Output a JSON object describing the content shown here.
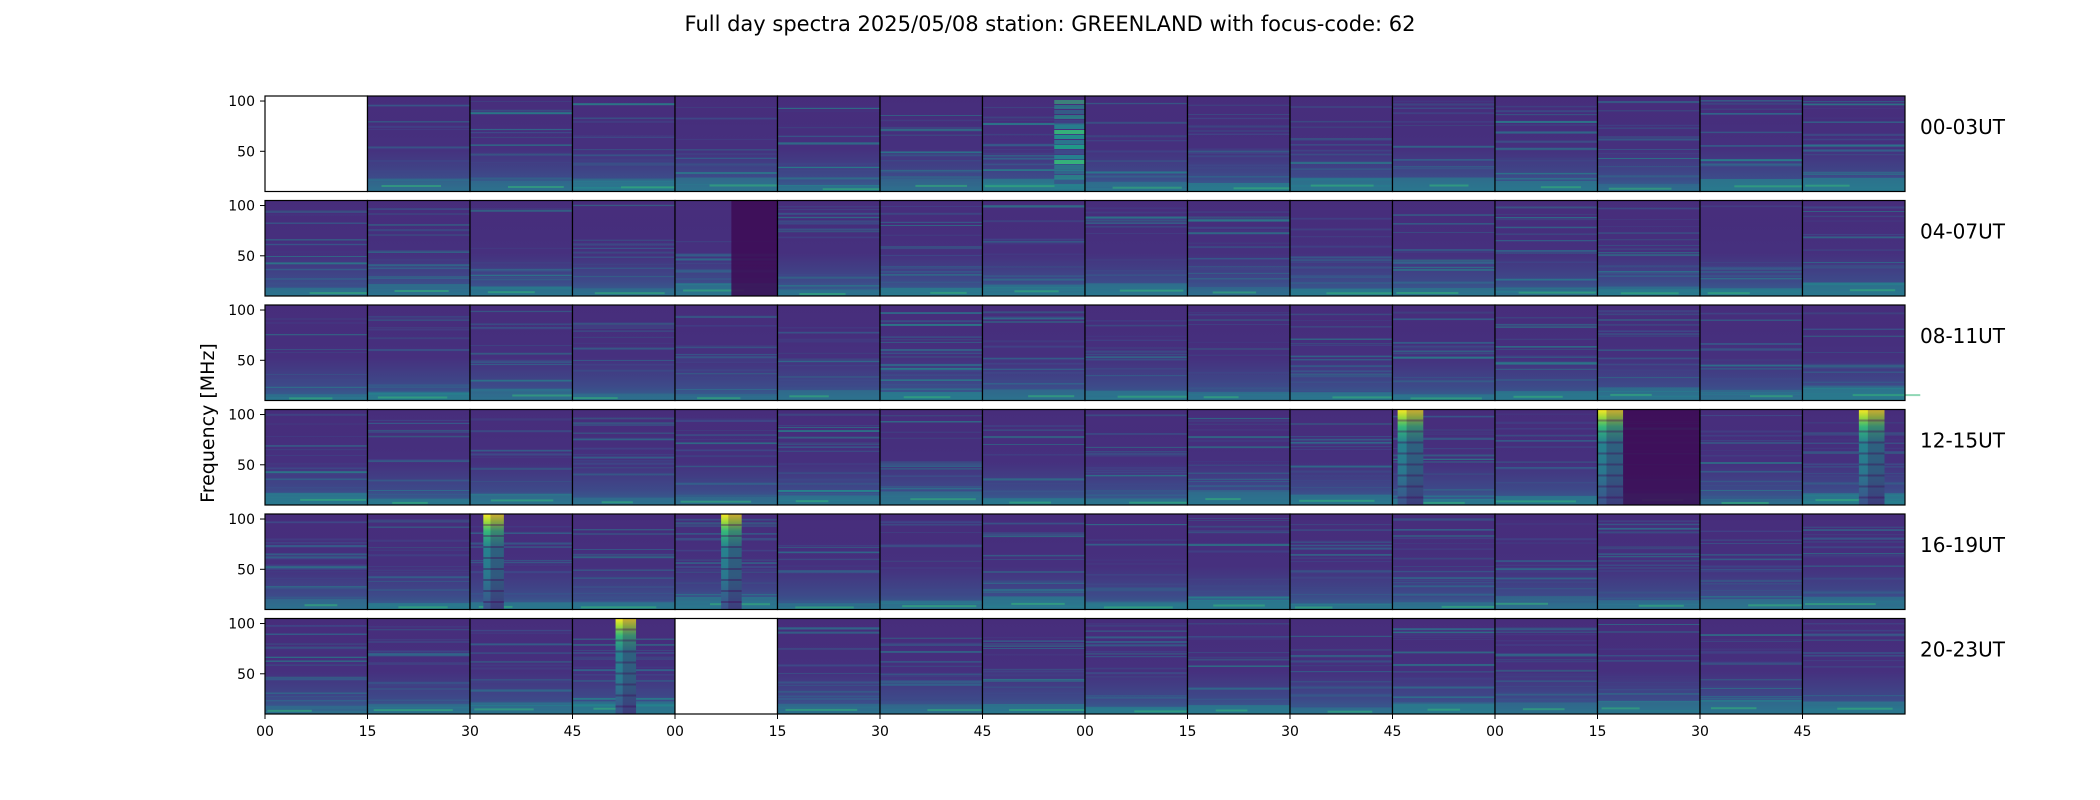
{
  "title": "Full day spectra 2025/05/08 station: GREENLAND with focus-code: 62",
  "chart_data": {
    "type": "heatmap",
    "title": "Full day spectra 2025/05/08 station: GREENLAND with focus-code: 62",
    "ylabel": "Frequency [MHz]",
    "xlabel": "",
    "colormap": "viridis",
    "ylim": [
      10,
      105
    ],
    "yticks": [
      50,
      100
    ],
    "x_ticks": [
      "00",
      "15",
      "30",
      "45",
      "00",
      "15",
      "30",
      "45",
      "00",
      "15",
      "30",
      "45",
      "00",
      "15",
      "30",
      "45"
    ],
    "rows": [
      {
        "label": "00-03UT",
        "missing": [
          0
        ],
        "bursts": [
          {
            "panel": 7,
            "start": 0.7,
            "end": 1.0,
            "type": "stripes"
          }
        ]
      },
      {
        "label": "04-07UT",
        "missing": [],
        "bursts": [
          {
            "panel": 4,
            "start": 0.55,
            "end": 1.0,
            "type": "dark"
          }
        ]
      },
      {
        "label": "08-11UT",
        "missing": [],
        "bursts": []
      },
      {
        "label": "12-15UT",
        "missing": [],
        "bursts": [
          {
            "panel": 11,
            "start": 0.05,
            "end": 0.3,
            "type": "burst"
          },
          {
            "panel": 13,
            "start": 0.0,
            "end": 0.25,
            "type": "burst"
          },
          {
            "panel": 13,
            "start": 0.25,
            "end": 1.0,
            "type": "dark"
          },
          {
            "panel": 15,
            "start": 0.55,
            "end": 0.8,
            "type": "burst"
          }
        ]
      },
      {
        "label": "16-19UT",
        "missing": [],
        "bursts": [
          {
            "panel": 2,
            "start": 0.13,
            "end": 0.33,
            "type": "burst"
          },
          {
            "panel": 4,
            "start": 0.45,
            "end": 0.65,
            "type": "burst"
          }
        ]
      },
      {
        "label": "20-23UT",
        "missing": [
          4
        ],
        "bursts": [
          {
            "panel": 3,
            "start": 0.42,
            "end": 0.62,
            "type": "burst"
          }
        ]
      }
    ]
  }
}
